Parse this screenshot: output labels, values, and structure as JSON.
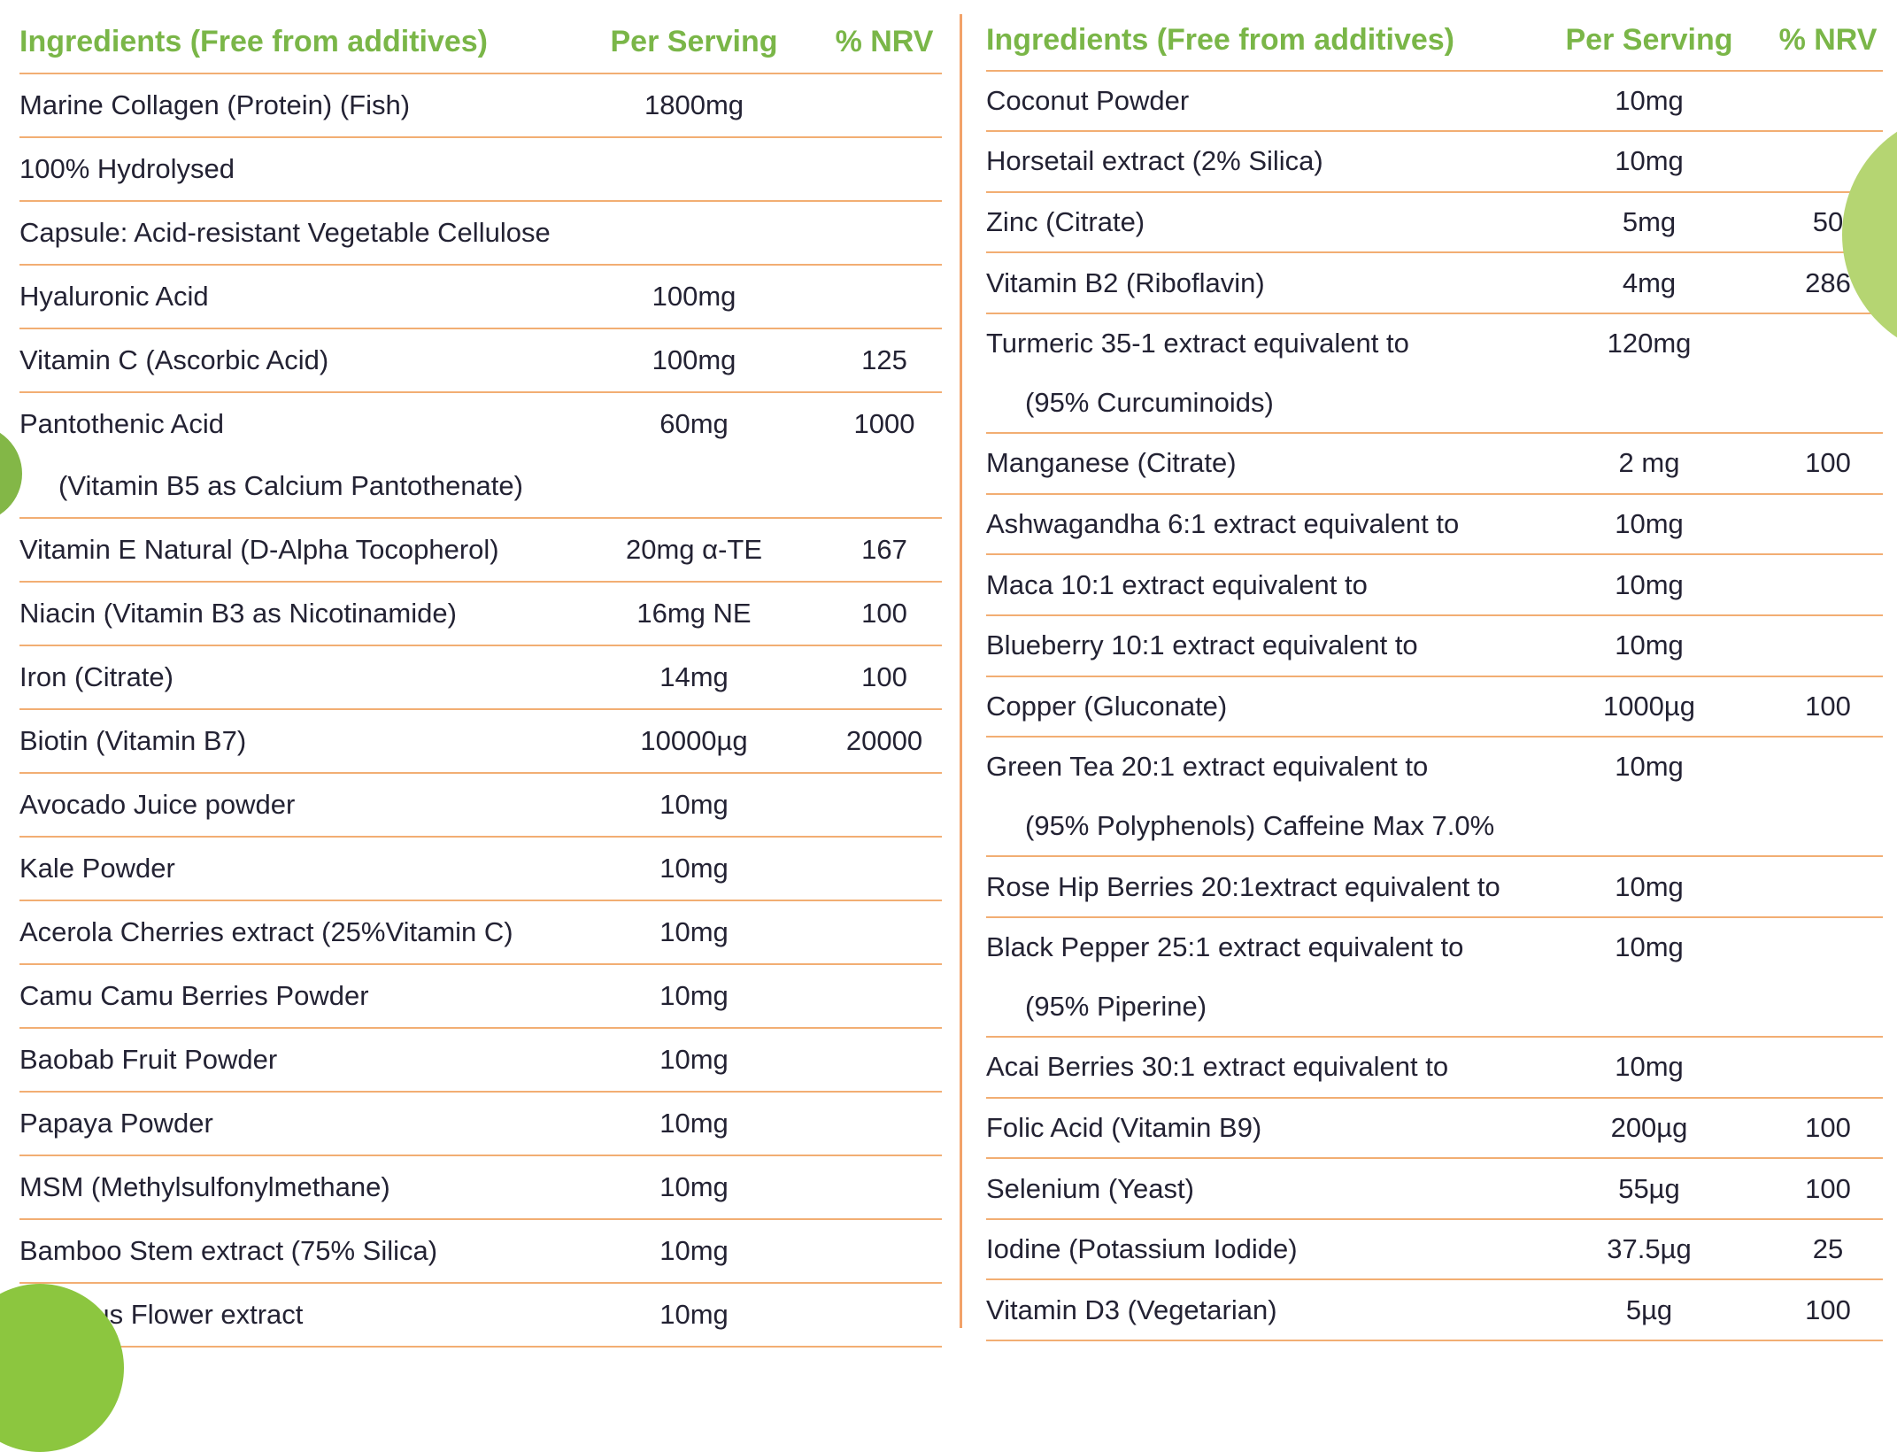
{
  "colors": {
    "header_green": "#7ab648",
    "divider_orange": "#f2ae73",
    "center_divider_orange": "#f2a269",
    "text": "#232233",
    "deco_green_left": "#83b747",
    "deco_green_topright": "#b5d572",
    "deco_green_bottomleft": "#8cc63f",
    "background": "#ffffff"
  },
  "left_table": {
    "headers": {
      "ingredients": "Ingredients (Free from additives)",
      "per_serving": "Per Serving",
      "nrv": "% NRV"
    },
    "rows": [
      {
        "name": "Marine Collagen (Protein) (Fish)",
        "serving": "1800mg",
        "nrv": ""
      },
      {
        "name": "100% Hydrolysed",
        "serving": "",
        "nrv": ""
      },
      {
        "name": "Capsule: Acid-resistant Vegetable Cellulose",
        "serving": "",
        "nrv": ""
      },
      {
        "name": "Hyaluronic Acid",
        "serving": "100mg",
        "nrv": ""
      },
      {
        "name": "Vitamin C (Ascorbic Acid)",
        "serving": "100mg",
        "nrv": "125"
      },
      {
        "name": "Pantothenic Acid",
        "serving": "60mg",
        "nrv": "1000",
        "sub": "(Vitamin B5 as Calcium Pantothenate)"
      },
      {
        "name": "Vitamin E Natural (D-Alpha Tocopherol)",
        "serving": "20mg α-TE",
        "nrv": "167"
      },
      {
        "name": "Niacin (Vitamin B3 as Nicotinamide)",
        "serving": "16mg NE",
        "nrv": "100"
      },
      {
        "name": "Iron (Citrate)",
        "serving": "14mg",
        "nrv": "100"
      },
      {
        "name": "Biotin (Vitamin B7)",
        "serving": "10000µg",
        "nrv": "20000"
      },
      {
        "name": "Avocado Juice powder",
        "serving": "10mg",
        "nrv": ""
      },
      {
        "name": "Kale Powder",
        "serving": "10mg",
        "nrv": ""
      },
      {
        "name": "Acerola Cherries extract (25%Vitamin C)",
        "serving": "10mg",
        "nrv": ""
      },
      {
        "name": "Camu Camu Berries Powder",
        "serving": "10mg",
        "nrv": ""
      },
      {
        "name": "Baobab Fruit Powder",
        "serving": "10mg",
        "nrv": ""
      },
      {
        "name": "Papaya Powder",
        "serving": "10mg",
        "nrv": ""
      },
      {
        "name": "MSM (Methylsulfonylmethane)",
        "serving": "10mg",
        "nrv": ""
      },
      {
        "name": "Bamboo Stem extract (75% Silica)",
        "serving": "10mg",
        "nrv": ""
      },
      {
        "name": "Hibiscus Flower extract",
        "serving": "10mg",
        "nrv": ""
      }
    ]
  },
  "right_table": {
    "headers": {
      "ingredients": "Ingredients (Free from additives)",
      "per_serving": "Per Serving",
      "nrv": "% NRV"
    },
    "rows": [
      {
        "name": "Coconut Powder",
        "serving": "10mg",
        "nrv": ""
      },
      {
        "name": "Horsetail extract (2% Silica)",
        "serving": "10mg",
        "nrv": ""
      },
      {
        "name": "Zinc (Citrate)",
        "serving": "5mg",
        "nrv": "50"
      },
      {
        "name": "Vitamin B2 (Riboflavin)",
        "serving": "4mg",
        "nrv": "286"
      },
      {
        "name": "Turmeric 35-1 extract equivalent to",
        "serving": "120mg",
        "nrv": "",
        "sub": "(95% Curcuminoids)"
      },
      {
        "name": "Manganese (Citrate)",
        "serving": "2 mg",
        "nrv": "100"
      },
      {
        "name": "Ashwagandha 6:1 extract equivalent to",
        "serving": "10mg",
        "nrv": ""
      },
      {
        "name": "Maca 10:1 extract equivalent to",
        "serving": "10mg",
        "nrv": ""
      },
      {
        "name": "Blueberry 10:1 extract equivalent to",
        "serving": "10mg",
        "nrv": ""
      },
      {
        "name": "Copper (Gluconate)",
        "serving": "1000µg",
        "nrv": "100"
      },
      {
        "name": "Green Tea 20:1 extract equivalent to",
        "serving": "10mg",
        "nrv": "",
        "sub": "(95% Polyphenols) Caffeine Max 7.0%"
      },
      {
        "name": "Rose Hip Berries 20:1extract equivalent to",
        "serving": "10mg",
        "nrv": ""
      },
      {
        "name": "Black Pepper 25:1 extract equivalent to",
        "serving": "10mg",
        "nrv": "",
        "sub": "(95% Piperine)"
      },
      {
        "name": "Acai Berries 30:1 extract equivalent to",
        "serving": "10mg",
        "nrv": ""
      },
      {
        "name": "Folic Acid (Vitamin B9)",
        "serving": "200µg",
        "nrv": "100"
      },
      {
        "name": "Selenium (Yeast)",
        "serving": "55µg",
        "nrv": "100"
      },
      {
        "name": "Iodine (Potassium Iodide)",
        "serving": "37.5µg",
        "nrv": "25"
      },
      {
        "name": "Vitamin D3 (Vegetarian)",
        "serving": "5µg",
        "nrv": "100"
      }
    ]
  }
}
